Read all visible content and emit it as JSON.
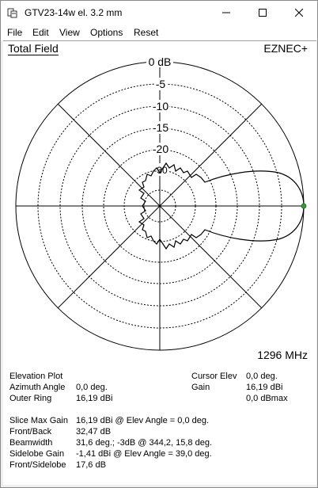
{
  "window": {
    "title": "GTV23-14w el. 3.2 mm"
  },
  "menu": [
    "File",
    "Edit",
    "View",
    "Options",
    "Reset"
  ],
  "plot": {
    "panel_title": "Total Field",
    "brand": "EZNEC+",
    "frequency": "1296 MHz",
    "ring_labels": [
      "0 dB",
      "-5",
      "-10",
      "-15",
      "-20",
      "-30"
    ],
    "line_color": "#000000",
    "marker_color": "#3a9a3a"
  },
  "info": {
    "plot_type": "Elevation Plot",
    "azimuth_angle_label": "Azimuth Angle",
    "azimuth_angle_value": "0,0 deg.",
    "outer_ring_label": "Outer Ring",
    "outer_ring_value": "16,19 dBi",
    "cursor_elev_label": "Cursor Elev",
    "cursor_elev_value": "0,0 deg.",
    "gain_label": "Gain",
    "gain_value": "16,19 dBi",
    "gain_rel_value": "0,0 dBmax",
    "slice_max_gain_label": "Slice Max Gain",
    "slice_max_gain_value": "16,19 dBi @ Elev Angle = 0,0 deg.",
    "front_back_label": "Front/Back",
    "front_back_value": "32,47 dB",
    "beamwidth_label": "Beamwidth",
    "beamwidth_value": "31,6 deg.; -3dB @ 344,2, 15,8 deg.",
    "sidelobe_gain_label": "Sidelobe Gain",
    "sidelobe_gain_value": "-1,41 dBi @ Elev Angle = 39,0 deg.",
    "front_sidelobe_label": "Front/Sidelobe",
    "front_sidelobe_value": "17,6 dB"
  }
}
